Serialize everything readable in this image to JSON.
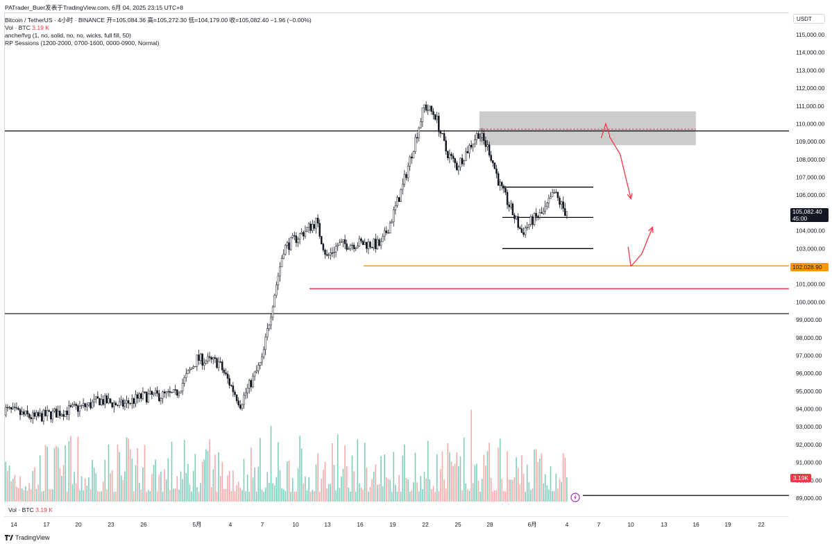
{
  "header": {
    "watermark": "PATrader_Buer发表于TradingView.com,  6月 04, 2025 23:15 UTC+8",
    "symbol_line": "Bitcoin / TetherUS · 4小时 · BINANCE  开=105,084.36  高=105,272.30  低=104,179.00  收=105,082.40  −1.96 (−0.00%)",
    "vol_label": "Vol · BTC",
    "vol_value": "3.19 K",
    "indicator1": "anche/fvg (1, no, solid, no, no, wicks, full fill, 50)",
    "indicator2": "RP Sessions (1200-2000, 0700-1600, 0000-0900, Normal)"
  },
  "axis": {
    "currency": "USDT",
    "price_tag_value": "105,082.40",
    "price_tag_countdown": "45:00",
    "level_tag": "102,028.90",
    "volume_tag": "3.19K"
  },
  "footer": {
    "vol_label": "Vol · BTC",
    "vol_value": "3.19 K",
    "brand": "TradingView"
  },
  "colors": {
    "up": "#ffffff",
    "down": "#131722",
    "vol_up": "#7fcdbb",
    "vol_down": "#f7a9a7",
    "zone": "#cccccc",
    "orange": "#ff9800",
    "red": "#f23645",
    "black": "#000000"
  },
  "chart_data": {
    "type": "candlestick",
    "title": "Bitcoin / TetherUS · 4小时 · BINANCE",
    "xlabel": "",
    "ylabel": "USDT",
    "y_ticks": [
      89000,
      90000,
      91000,
      92000,
      93000,
      94000,
      95000,
      96000,
      97000,
      98000,
      99000,
      100000,
      101000,
      102000,
      103000,
      104000,
      105000,
      106000,
      107000,
      108000,
      109000,
      110000,
      111000,
      112000,
      113000,
      114000,
      115000
    ],
    "x_tick_labels": [
      "14",
      "17",
      "20",
      "23",
      "26",
      "5月",
      "4",
      "7",
      "10",
      "13",
      "16",
      "19",
      "22",
      "25",
      "28",
      "6月",
      "4",
      "7",
      "10",
      "13",
      "16",
      "19",
      "22"
    ],
    "price_path_anchors": [
      {
        "date": "2025-04-13",
        "price": 94000
      },
      {
        "date": "2025-04-16",
        "price": 93500
      },
      {
        "date": "2025-04-21",
        "price": 94200
      },
      {
        "date": "2025-04-22",
        "price": 94500
      },
      {
        "date": "2025-04-24",
        "price": 94200
      },
      {
        "date": "2025-04-26",
        "price": 94700
      },
      {
        "date": "2025-04-29",
        "price": 94800
      },
      {
        "date": "2025-05-01",
        "price": 96800
      },
      {
        "date": "2025-05-03",
        "price": 96600
      },
      {
        "date": "2025-05-05",
        "price": 94300
      },
      {
        "date": "2025-05-07",
        "price": 96700
      },
      {
        "date": "2025-05-08",
        "price": 100000
      },
      {
        "date": "2025-05-09",
        "price": 103000
      },
      {
        "date": "2025-05-12",
        "price": 104500
      },
      {
        "date": "2025-05-13",
        "price": 102500
      },
      {
        "date": "2025-05-14",
        "price": 103200
      },
      {
        "date": "2025-05-16",
        "price": 103300
      },
      {
        "date": "2025-05-18",
        "price": 103200
      },
      {
        "date": "2025-05-19",
        "price": 104700
      },
      {
        "date": "2025-05-20",
        "price": 106500
      },
      {
        "date": "2025-05-22",
        "price": 111000
      },
      {
        "date": "2025-05-23",
        "price": 110500
      },
      {
        "date": "2025-05-24",
        "price": 108500
      },
      {
        "date": "2025-05-25",
        "price": 107600
      },
      {
        "date": "2025-05-27",
        "price": 109500
      },
      {
        "date": "2025-05-28",
        "price": 108500
      },
      {
        "date": "2025-05-29",
        "price": 106500
      },
      {
        "date": "2025-05-30",
        "price": 105200
      },
      {
        "date": "2025-05-31",
        "price": 103900
      },
      {
        "date": "2025-06-01",
        "price": 104600
      },
      {
        "date": "2025-06-02",
        "price": 105000
      },
      {
        "date": "2025-06-03",
        "price": 106100
      },
      {
        "date": "2025-06-04",
        "price": 105082.4
      }
    ],
    "horizontal_levels": [
      {
        "price": 109600,
        "color": "#000000",
        "style": "solid"
      },
      {
        "price": 99350,
        "color": "#000000",
        "style": "solid"
      },
      {
        "price": 89150,
        "color": "#000000",
        "style": "solid"
      },
      {
        "price": 102028.9,
        "color": "#ff9800",
        "style": "solid"
      },
      {
        "price": 100750,
        "color": "#f23645",
        "style": "solid"
      }
    ],
    "range_lines": [
      {
        "price": 106450
      },
      {
        "price": 104750
      },
      {
        "price": 103000
      }
    ],
    "zone": {
      "start": "2025-05-27",
      "end": "2025-06-16",
      "top": 110700,
      "bottom": 108800,
      "midline": 109700
    },
    "projection_arrows": [
      {
        "points": [
          [
            "2025-06-08",
            109300
          ],
          [
            "2025-06-09",
            108300
          ],
          [
            "2025-06-10",
            105800
          ]
        ]
      },
      {
        "points": [
          [
            "2025-06-10",
            102000
          ],
          [
            "2025-06-11",
            102700
          ],
          [
            "2025-06-12",
            104200
          ]
        ]
      }
    ],
    "last_price": 105082.4,
    "last_volume": "3.19K"
  }
}
